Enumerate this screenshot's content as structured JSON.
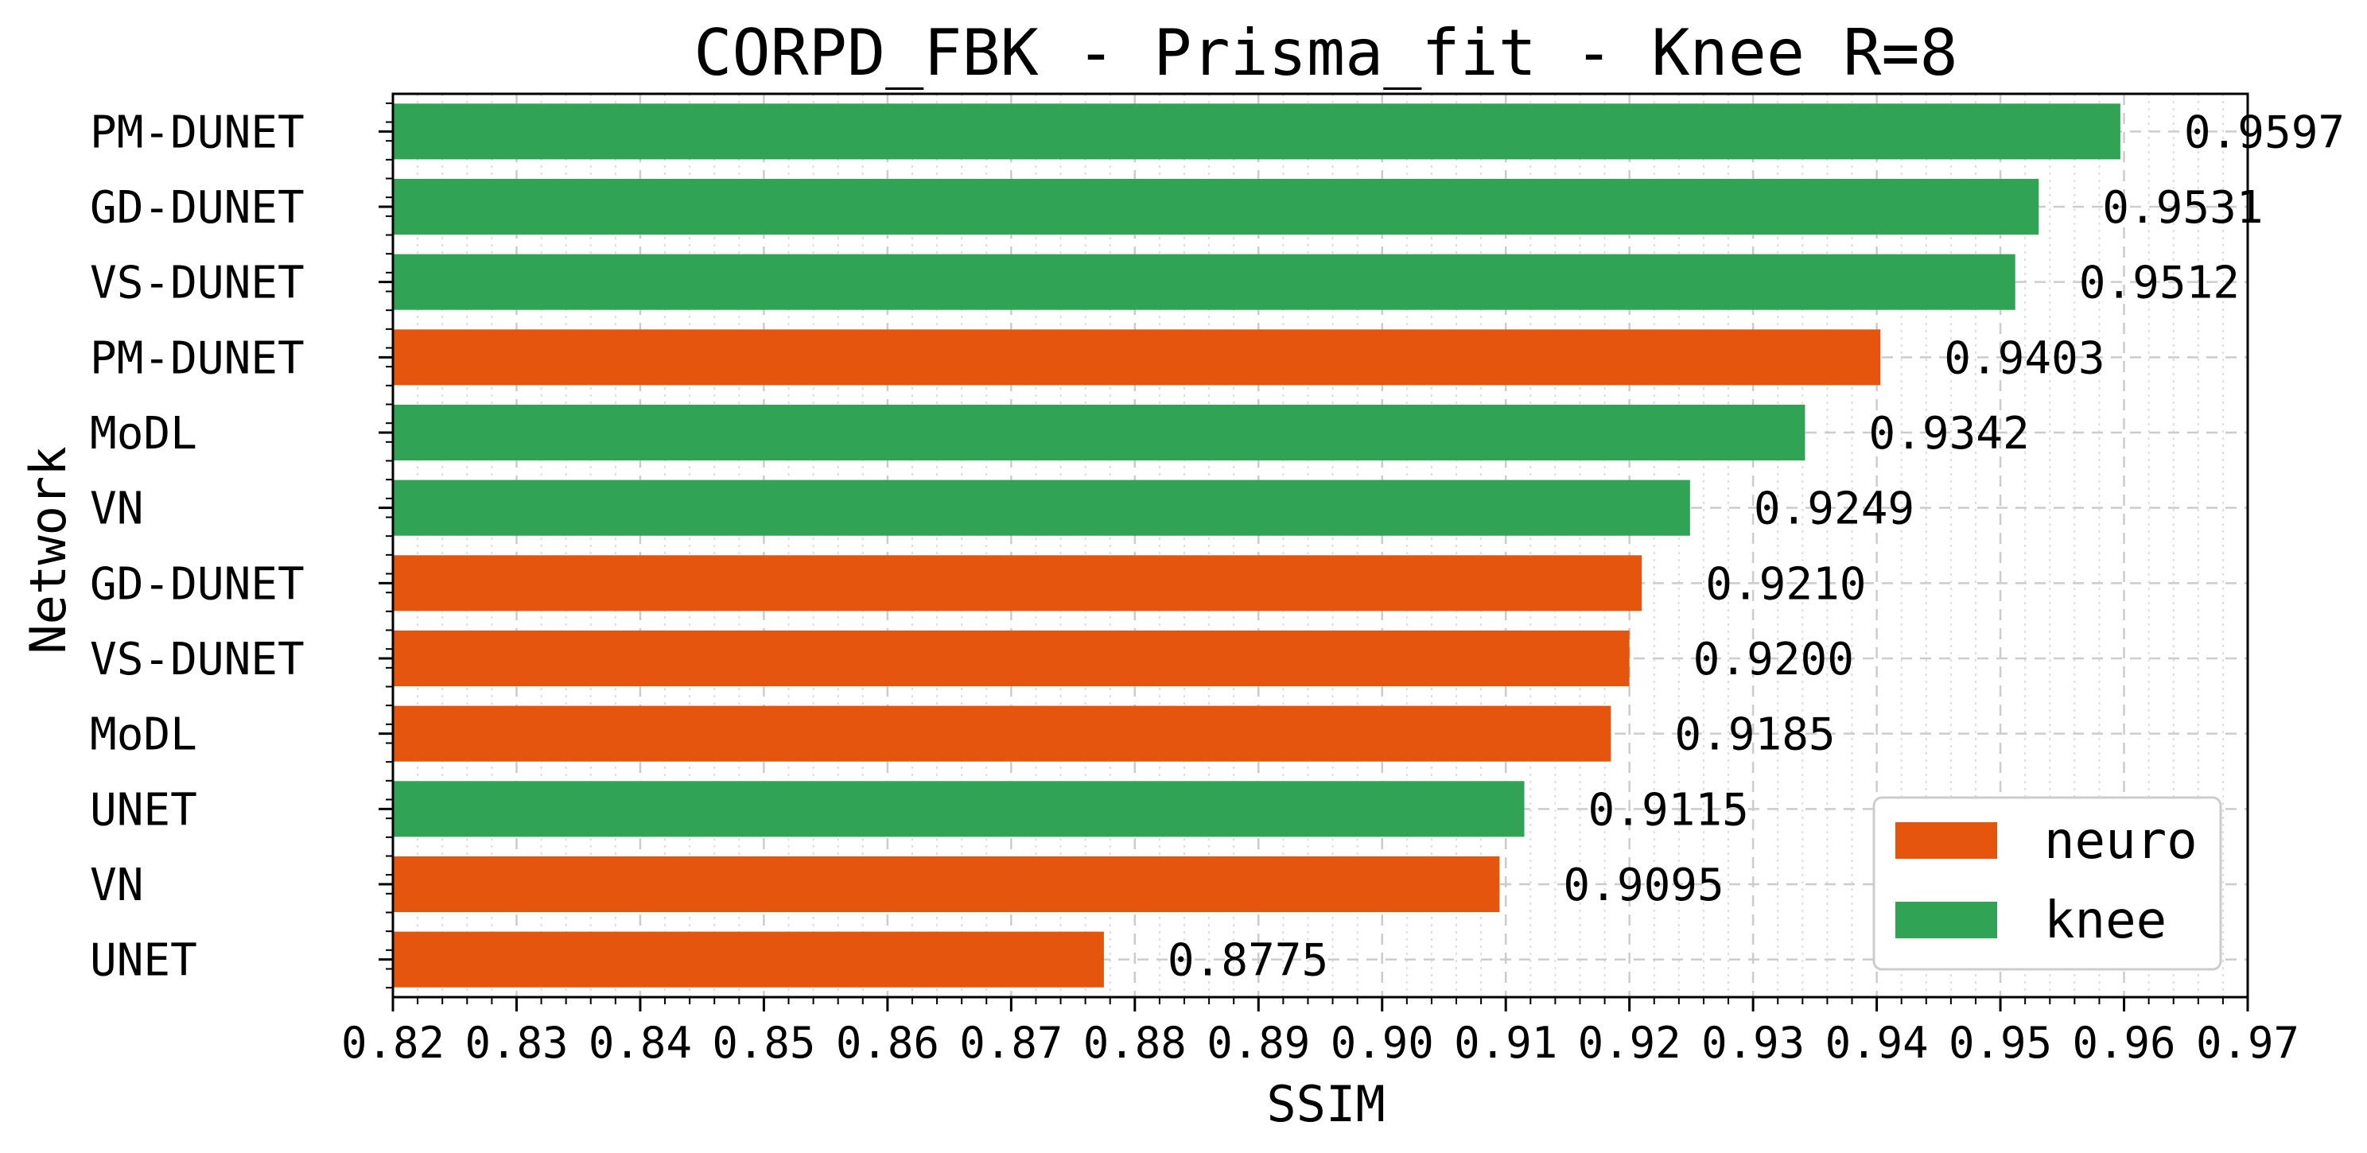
{
  "chart_data": {
    "type": "bar",
    "orientation": "horizontal",
    "title": "CORPD_FBK - Prisma_fit - Knee R=8",
    "xlabel": "SSIM",
    "ylabel": "Network",
    "xlim": [
      0.82,
      0.97
    ],
    "x_ticks": [
      "0.82",
      "0.83",
      "0.84",
      "0.85",
      "0.86",
      "0.87",
      "0.88",
      "0.89",
      "0.90",
      "0.91",
      "0.92",
      "0.93",
      "0.94",
      "0.95",
      "0.96",
      "0.97"
    ],
    "grid": true,
    "legend_position": "lower-right",
    "legend": [
      {
        "name": "neuro",
        "color": "#e6550d"
      },
      {
        "name": "knee",
        "color": "#31a354"
      }
    ],
    "bars": [
      {
        "label": "PM-DUNET",
        "value": 0.9597,
        "value_label": "0.9597",
        "group": "knee"
      },
      {
        "label": "GD-DUNET",
        "value": 0.9531,
        "value_label": "0.9531",
        "group": "knee"
      },
      {
        "label": "VS-DUNET",
        "value": 0.9512,
        "value_label": "0.9512",
        "group": "knee"
      },
      {
        "label": "PM-DUNET",
        "value": 0.9403,
        "value_label": "0.9403",
        "group": "neuro"
      },
      {
        "label": "MoDL",
        "value": 0.9342,
        "value_label": "0.9342",
        "group": "knee"
      },
      {
        "label": "VN",
        "value": 0.9249,
        "value_label": "0.9249",
        "group": "knee"
      },
      {
        "label": "GD-DUNET",
        "value": 0.921,
        "value_label": "0.9210",
        "group": "neuro"
      },
      {
        "label": "VS-DUNET",
        "value": 0.92,
        "value_label": "0.9200",
        "group": "neuro"
      },
      {
        "label": "MoDL",
        "value": 0.9185,
        "value_label": "0.9185",
        "group": "neuro"
      },
      {
        "label": "UNET",
        "value": 0.9115,
        "value_label": "0.9115",
        "group": "knee"
      },
      {
        "label": "VN",
        "value": 0.9095,
        "value_label": "0.9095",
        "group": "neuro"
      },
      {
        "label": "UNET",
        "value": 0.8775,
        "value_label": "0.8775",
        "group": "neuro"
      }
    ]
  }
}
